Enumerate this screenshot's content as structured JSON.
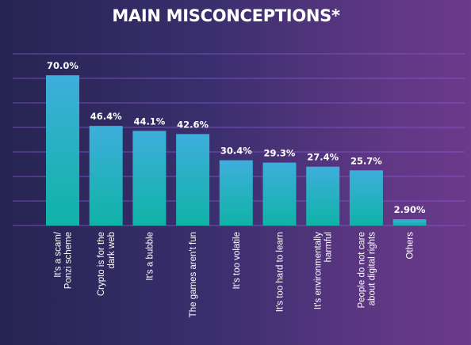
{
  "chart_data": {
    "type": "bar",
    "title": "MAIN MISCONCEPTIONS*",
    "xlabel": "",
    "ylabel": "",
    "ylim": [
      0,
      80
    ],
    "grid": true,
    "categories": [
      [
        "It's a scam/",
        "Ponzi scheme"
      ],
      [
        "Crypto is for the",
        "dark web"
      ],
      [
        "It's a bubble"
      ],
      [
        "The games aren't fun"
      ],
      [
        "It's too volatile"
      ],
      [
        "It's too hard to learn"
      ],
      [
        "It's environmentally",
        "harmful"
      ],
      [
        "People do not care",
        "about digital rights"
      ],
      [
        "Others"
      ]
    ],
    "values": [
      70.0,
      46.4,
      44.1,
      42.6,
      30.4,
      29.3,
      27.4,
      25.7,
      2.9
    ],
    "value_labels": [
      "70.0%",
      "46.4%",
      "44.1%",
      "42.6%",
      "30.4%",
      "29.3%",
      "27.4%",
      "25.7%",
      "2.90%"
    ],
    "colors": {
      "bar_top": "#3eaedc",
      "bar_bottom": "#0fb3a6",
      "grid": "#8a5ad0",
      "text": "#ffffff"
    }
  }
}
